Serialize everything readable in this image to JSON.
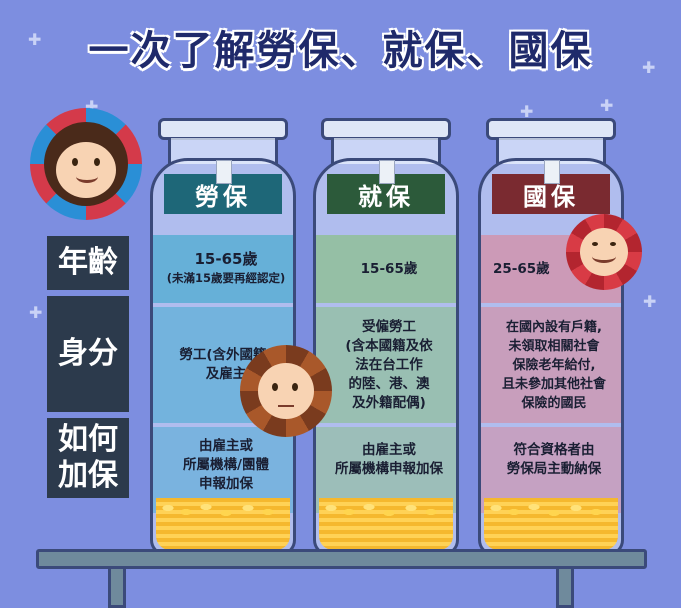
{
  "title": "一次了解勞保、就保、國保",
  "row_labels": {
    "age": "年齡",
    "identity": "身分",
    "how": "如何加保"
  },
  "colors": {
    "background": "#7d8ee0",
    "title": "#1f2a6b",
    "row_label_bg": "#2c3a4c",
    "labor": "#2aa6c7",
    "employment": "#7fc169",
    "national": "#e7777f"
  },
  "jars": [
    {
      "name": "勞保",
      "age": "15-65歲",
      "age_note": "(未滿15歲要再經認定)",
      "identity": "勞工(含外國籍)\n及雇主",
      "how": "由雇主或\n所屬機構/團體\n申報加保"
    },
    {
      "name": "就保",
      "age": "15-65歲",
      "age_note": "",
      "identity": "受僱勞工\n(含本國籍及依\n法在台工作\n的陸、港、澳\n及外籍配偶)",
      "how": "由雇主或\n所屬機構申報加保"
    },
    {
      "name": "國保",
      "age": "25-65歲",
      "age_note": "",
      "identity": "在國內設有戶籍,\n未領取相關社會\n保險老年給付,\n且未參加其他社會\n保險的國民",
      "how": "符合資格者由\n勞保局主動納保"
    }
  ],
  "icons": [
    "mascot-blue-flower-icon",
    "mascot-brown-flower-icon",
    "mascot-red-flower-icon",
    "coin-stack-icon",
    "sparkle-icon"
  ]
}
